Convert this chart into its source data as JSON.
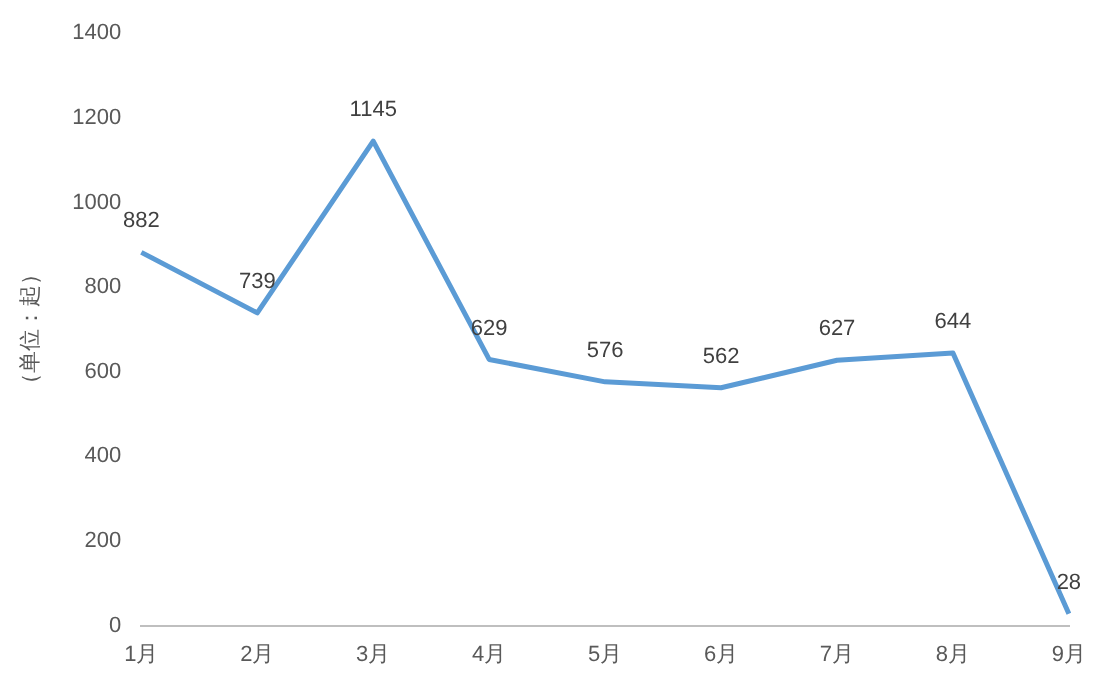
{
  "chart_data": {
    "type": "line",
    "ylabel": "（单位：起）",
    "categories": [
      "1月",
      "2月",
      "3月",
      "4月",
      "5月",
      "6月",
      "7月",
      "8月",
      "9月"
    ],
    "series": [
      {
        "color": "#5b9bd5",
        "values": [
          882,
          739,
          1145,
          629,
          576,
          562,
          627,
          644,
          28
        ]
      }
    ],
    "ylim": [
      0,
      1400
    ],
    "yticks": [
      0,
      200,
      400,
      600,
      800,
      1000,
      1200,
      1400
    ],
    "grid": false,
    "legend": false,
    "data_labels": true,
    "marker": "none",
    "line_style": "solid"
  }
}
